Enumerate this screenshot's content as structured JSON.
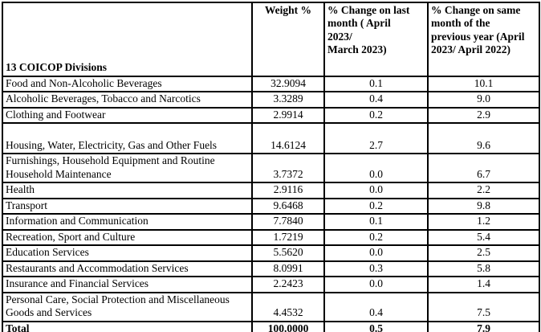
{
  "table": {
    "header": {
      "divisions": "13 COICOP Divisions",
      "weight": "Weight %",
      "change_month": "% Change on last\nmonth ( April\n2023/\nMarch 2023)",
      "change_year": "% Change on same\nmonth of the\nprevious year (April\n2023/ April 2022)"
    },
    "rows": [
      {
        "division": "Food and Non-Alcoholic Beverages",
        "weight": "32.9094",
        "change_month": "0.1",
        "change_year": "10.1"
      },
      {
        "division": "Alcoholic Beverages, Tobacco and Narcotics",
        "weight": "3.3289",
        "change_month": "0.4",
        "change_year": "9.0"
      },
      {
        "division": "Clothing and Footwear",
        "weight": "2.9914",
        "change_month": "0.2",
        "change_year": "2.9"
      },
      {
        "division": "Housing, Water, Electricity, Gas and Other Fuels",
        "weight": "14.6124",
        "change_month": "2.7",
        "change_year": "9.6"
      },
      {
        "division": "Furnishings, Household Equipment and Routine Household Maintenance",
        "weight": "3.7372",
        "change_month": "0.0",
        "change_year": "6.7"
      },
      {
        "division": "Health",
        "weight": "2.9116",
        "change_month": "0.0",
        "change_year": "2.2"
      },
      {
        "division": "Transport",
        "weight": "9.6468",
        "change_month": "0.2",
        "change_year": "9.8"
      },
      {
        "division": "Information and Communication",
        "weight": "7.7840",
        "change_month": "0.1",
        "change_year": "1.2"
      },
      {
        "division": "Recreation, Sport and Culture",
        "weight": "1.7219",
        "change_month": "0.2",
        "change_year": "5.4"
      },
      {
        "division": "Education Services",
        "weight": "5.5620",
        "change_month": "0.0",
        "change_year": "2.5"
      },
      {
        "division": "Restaurants and Accommodation Services",
        "weight": "8.0991",
        "change_month": "0.3",
        "change_year": "5.8"
      },
      {
        "division": "Insurance and Financial Services",
        "weight": "2.2423",
        "change_month": "0.0",
        "change_year": "1.4"
      },
      {
        "division": "Personal Care, Social Protection and Miscellaneous Goods and Services",
        "weight": "4.4532",
        "change_month": "0.4",
        "change_year": "7.5"
      }
    ],
    "total": {
      "label": "Total",
      "weight": "100.0000",
      "change_month": "0.5",
      "change_year": "7.9"
    }
  },
  "colors": {
    "border": "#000000",
    "text": "#000000",
    "background": "#ffffff"
  }
}
